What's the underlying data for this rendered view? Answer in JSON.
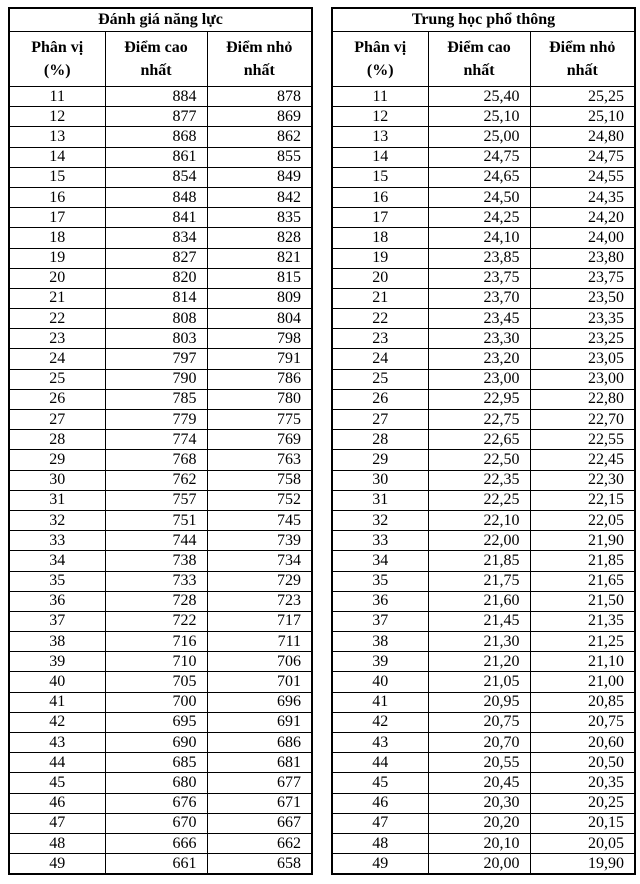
{
  "tables": [
    {
      "title": "Đánh giá năng lực",
      "columns": [
        "Phân vị\n(%)",
        "Điểm cao\nnhất",
        "Điểm nhỏ\nnhất"
      ],
      "rows": [
        [
          "11",
          "884",
          "878"
        ],
        [
          "12",
          "877",
          "869"
        ],
        [
          "13",
          "868",
          "862"
        ],
        [
          "14",
          "861",
          "855"
        ],
        [
          "15",
          "854",
          "849"
        ],
        [
          "16",
          "848",
          "842"
        ],
        [
          "17",
          "841",
          "835"
        ],
        [
          "18",
          "834",
          "828"
        ],
        [
          "19",
          "827",
          "821"
        ],
        [
          "20",
          "820",
          "815"
        ],
        [
          "21",
          "814",
          "809"
        ],
        [
          "22",
          "808",
          "804"
        ],
        [
          "23",
          "803",
          "798"
        ],
        [
          "24",
          "797",
          "791"
        ],
        [
          "25",
          "790",
          "786"
        ],
        [
          "26",
          "785",
          "780"
        ],
        [
          "27",
          "779",
          "775"
        ],
        [
          "28",
          "774",
          "769"
        ],
        [
          "29",
          "768",
          "763"
        ],
        [
          "30",
          "762",
          "758"
        ],
        [
          "31",
          "757",
          "752"
        ],
        [
          "32",
          "751",
          "745"
        ],
        [
          "33",
          "744",
          "739"
        ],
        [
          "34",
          "738",
          "734"
        ],
        [
          "35",
          "733",
          "729"
        ],
        [
          "36",
          "728",
          "723"
        ],
        [
          "37",
          "722",
          "717"
        ],
        [
          "38",
          "716",
          "711"
        ],
        [
          "39",
          "710",
          "706"
        ],
        [
          "40",
          "705",
          "701"
        ],
        [
          "41",
          "700",
          "696"
        ],
        [
          "42",
          "695",
          "691"
        ],
        [
          "43",
          "690",
          "686"
        ],
        [
          "44",
          "685",
          "681"
        ],
        [
          "45",
          "680",
          "677"
        ],
        [
          "46",
          "676",
          "671"
        ],
        [
          "47",
          "670",
          "667"
        ],
        [
          "48",
          "666",
          "662"
        ],
        [
          "49",
          "661",
          "658"
        ]
      ]
    },
    {
      "title": "Trung học phổ thông",
      "columns": [
        "Phân vị\n(%)",
        "Điểm cao\nnhất",
        "Điểm nhỏ\nnhất"
      ],
      "rows": [
        [
          "11",
          "25,40",
          "25,25"
        ],
        [
          "12",
          "25,10",
          "25,10"
        ],
        [
          "13",
          "25,00",
          "24,80"
        ],
        [
          "14",
          "24,75",
          "24,75"
        ],
        [
          "15",
          "24,65",
          "24,55"
        ],
        [
          "16",
          "24,50",
          "24,35"
        ],
        [
          "17",
          "24,25",
          "24,20"
        ],
        [
          "18",
          "24,10",
          "24,00"
        ],
        [
          "19",
          "23,85",
          "23,80"
        ],
        [
          "20",
          "23,75",
          "23,75"
        ],
        [
          "21",
          "23,70",
          "23,50"
        ],
        [
          "22",
          "23,45",
          "23,35"
        ],
        [
          "23",
          "23,30",
          "23,25"
        ],
        [
          "24",
          "23,20",
          "23,05"
        ],
        [
          "25",
          "23,00",
          "23,00"
        ],
        [
          "26",
          "22,95",
          "22,80"
        ],
        [
          "27",
          "22,75",
          "22,70"
        ],
        [
          "28",
          "22,65",
          "22,55"
        ],
        [
          "29",
          "22,50",
          "22,45"
        ],
        [
          "30",
          "22,35",
          "22,30"
        ],
        [
          "31",
          "22,25",
          "22,15"
        ],
        [
          "32",
          "22,10",
          "22,05"
        ],
        [
          "33",
          "22,00",
          "21,90"
        ],
        [
          "34",
          "21,85",
          "21,85"
        ],
        [
          "35",
          "21,75",
          "21,65"
        ],
        [
          "36",
          "21,60",
          "21,50"
        ],
        [
          "37",
          "21,45",
          "21,35"
        ],
        [
          "38",
          "21,30",
          "21,25"
        ],
        [
          "39",
          "21,20",
          "21,10"
        ],
        [
          "40",
          "21,05",
          "21,00"
        ],
        [
          "41",
          "20,95",
          "20,85"
        ],
        [
          "42",
          "20,75",
          "20,75"
        ],
        [
          "43",
          "20,70",
          "20,60"
        ],
        [
          "44",
          "20,55",
          "20,50"
        ],
        [
          "45",
          "20,45",
          "20,35"
        ],
        [
          "46",
          "20,30",
          "20,25"
        ],
        [
          "47",
          "20,20",
          "20,15"
        ],
        [
          "48",
          "20,10",
          "20,05"
        ],
        [
          "49",
          "20,00",
          "19,90"
        ]
      ]
    }
  ]
}
